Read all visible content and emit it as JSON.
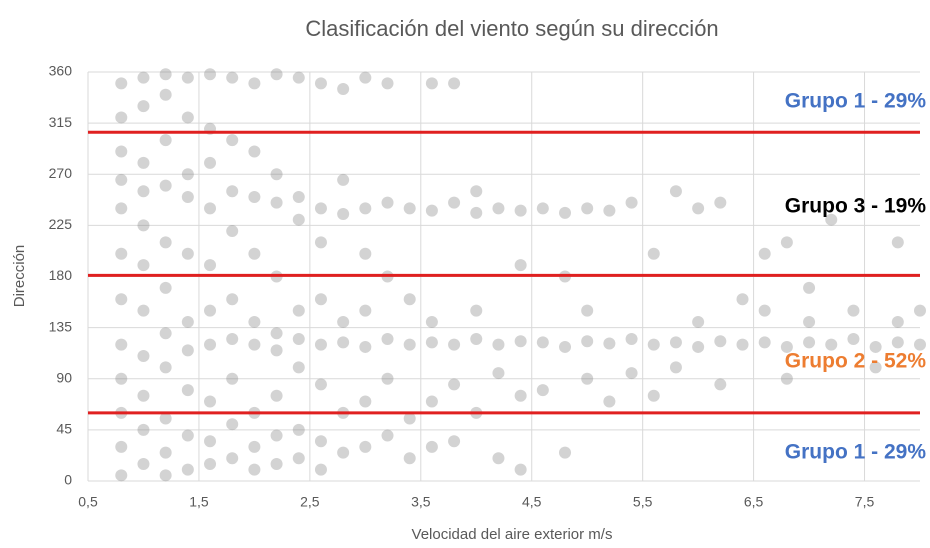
{
  "chart_data": {
    "type": "scatter",
    "title": "Clasificación del viento según su dirección",
    "x_label": "Velocidad del aire exterior m/s",
    "y_label": "Dirección",
    "xlim": [
      0.5,
      8
    ],
    "ylim": [
      0,
      360
    ],
    "xticks": [
      {
        "value": 0.5,
        "label": "0,5"
      },
      {
        "value": 1.5,
        "label": "1,5"
      },
      {
        "value": 2.5,
        "label": "2,5"
      },
      {
        "value": 3.5,
        "label": "3,5"
      },
      {
        "value": 4.5,
        "label": "4,5"
      },
      {
        "value": 5.5,
        "label": "5,5"
      },
      {
        "value": 6.5,
        "label": "6,5"
      },
      {
        "value": 7.5,
        "label": "7,5"
      }
    ],
    "yticks": [
      0,
      45,
      90,
      135,
      180,
      225,
      270,
      315,
      360
    ],
    "grid": true,
    "color": "#808080",
    "reference_lines": [
      {
        "value": 307,
        "color": "#e02020"
      },
      {
        "value": 181,
        "color": "#e02020"
      },
      {
        "value": 60,
        "color": "#e02020"
      }
    ],
    "annotations": [
      {
        "text": "Grupo 1 - 29%",
        "color": "#4472c4"
      },
      {
        "text": "Grupo 3 - 19%",
        "color": "#000000"
      },
      {
        "text": "Grupo 2 - 52%",
        "color": "#ed7d31"
      },
      {
        "text": "Grupo 1 - 29%",
        "color": "#4472c4"
      }
    ],
    "x": [
      0.8,
      0.8,
      0.8,
      0.8,
      0.8,
      0.8,
      0.8,
      0.8,
      0.8,
      0.8,
      0.8,
      0.8,
      1.0,
      1.0,
      1.0,
      1.0,
      1.0,
      1.0,
      1.0,
      1.0,
      1.0,
      1.0,
      1.0,
      1.2,
      1.2,
      1.2,
      1.2,
      1.2,
      1.2,
      1.2,
      1.2,
      1.2,
      1.2,
      1.2,
      1.4,
      1.4,
      1.4,
      1.4,
      1.4,
      1.4,
      1.4,
      1.4,
      1.4,
      1.4,
      1.6,
      1.6,
      1.6,
      1.6,
      1.6,
      1.6,
      1.6,
      1.6,
      1.6,
      1.6,
      1.8,
      1.8,
      1.8,
      1.8,
      1.8,
      1.8,
      1.8,
      1.8,
      1.8,
      2.0,
      2.0,
      2.0,
      2.0,
      2.0,
      2.0,
      2.0,
      2.0,
      2.0,
      2.2,
      2.2,
      2.2,
      2.2,
      2.2,
      2.2,
      2.2,
      2.2,
      2.2,
      2.4,
      2.4,
      2.4,
      2.4,
      2.4,
      2.4,
      2.4,
      2.4,
      2.6,
      2.6,
      2.6,
      2.6,
      2.6,
      2.6,
      2.6,
      2.6,
      2.8,
      2.8,
      2.8,
      2.8,
      2.8,
      2.8,
      2.8,
      3.0,
      3.0,
      3.0,
      3.0,
      3.0,
      3.0,
      3.0,
      3.2,
      3.2,
      3.2,
      3.2,
      3.2,
      3.2,
      3.4,
      3.4,
      3.4,
      3.4,
      3.4,
      3.6,
      3.6,
      3.6,
      3.6,
      3.6,
      3.6,
      3.8,
      3.8,
      3.8,
      3.8,
      3.8,
      4.0,
      4.0,
      4.0,
      4.0,
      4.0,
      4.2,
      4.2,
      4.2,
      4.2,
      4.4,
      4.4,
      4.4,
      4.4,
      4.4,
      4.6,
      4.6,
      4.6,
      4.8,
      4.8,
      4.8,
      4.8,
      5.0,
      5.0,
      5.0,
      5.0,
      5.2,
      5.2,
      5.2,
      5.4,
      5.4,
      5.4,
      5.6,
      5.6,
      5.6,
      5.8,
      5.8,
      5.8,
      6.0,
      6.0,
      6.0,
      6.2,
      6.2,
      6.2,
      6.4,
      6.4,
      6.6,
      6.6,
      6.6,
      6.8,
      6.8,
      6.8,
      7.0,
      7.0,
      7.0,
      7.2,
      7.2,
      7.4,
      7.4,
      7.6,
      7.6,
      7.8,
      7.8,
      7.8,
      8.0,
      8.0
    ],
    "values": [
      350,
      320,
      290,
      265,
      240,
      200,
      160,
      120,
      90,
      60,
      30,
      5,
      355,
      330,
      280,
      255,
      225,
      190,
      150,
      110,
      75,
      45,
      15,
      358,
      340,
      300,
      260,
      210,
      170,
      130,
      100,
      55,
      25,
      5,
      355,
      320,
      270,
      250,
      200,
      140,
      115,
      80,
      40,
      10,
      358,
      310,
      280,
      240,
      190,
      150,
      120,
      70,
      35,
      15,
      355,
      300,
      255,
      220,
      160,
      125,
      90,
      50,
      20,
      350,
      290,
      250,
      200,
      140,
      120,
      60,
      30,
      10,
      358,
      270,
      245,
      180,
      130,
      115,
      75,
      40,
      15,
      355,
      250,
      230,
      150,
      125,
      100,
      45,
      20,
      350,
      240,
      210,
      160,
      120,
      85,
      35,
      10,
      345,
      265,
      235,
      140,
      122,
      60,
      25,
      355,
      240,
      200,
      150,
      118,
      70,
      30,
      350,
      245,
      180,
      125,
      90,
      40,
      240,
      160,
      120,
      55,
      20,
      350,
      238,
      140,
      122,
      70,
      30,
      350,
      245,
      120,
      85,
      35,
      255,
      236,
      150,
      125,
      60,
      240,
      120,
      95,
      20,
      238,
      190,
      123,
      75,
      10,
      240,
      122,
      80,
      236,
      180,
      118,
      25,
      240,
      150,
      123,
      90,
      238,
      121,
      70,
      245,
      125,
      95,
      120,
      200,
      75,
      255,
      122,
      100,
      240,
      118,
      140,
      245,
      123,
      85,
      120,
      160,
      200,
      122,
      150,
      210,
      118,
      90,
      122,
      140,
      170,
      120,
      230,
      125,
      150,
      118,
      100,
      122,
      210,
      140,
      120,
      150
    ]
  }
}
